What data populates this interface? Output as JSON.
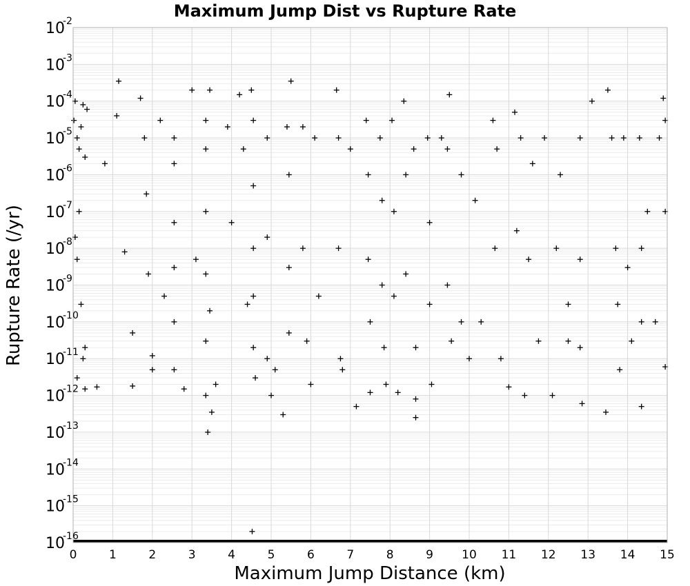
{
  "chart_data": {
    "type": "scatter",
    "title": "Maximum Jump Dist vs Rupture Rate",
    "xlabel": "Maximum Jump Distance (km)",
    "ylabel": "Rupture Rate (/yr)",
    "xlim": [
      0,
      15
    ],
    "ylim": [
      1e-16,
      0.01
    ],
    "yscale": "log",
    "grid": true,
    "marker": "+",
    "marker_color": "#000000",
    "x_ticks": [
      "0",
      "1",
      "2",
      "3",
      "4",
      "5",
      "6",
      "7",
      "8",
      "9",
      "10",
      "11",
      "12",
      "13",
      "14",
      "15"
    ],
    "y_ticks": [
      {
        "base": "10",
        "exp": "-16"
      },
      {
        "base": "10",
        "exp": "-15"
      },
      {
        "base": "10",
        "exp": "-14"
      },
      {
        "base": "10",
        "exp": "-13"
      },
      {
        "base": "10",
        "exp": "-12"
      },
      {
        "base": "10",
        "exp": "-11"
      },
      {
        "base": "10",
        "exp": "-10"
      },
      {
        "base": "10",
        "exp": "-9"
      },
      {
        "base": "10",
        "exp": "-8"
      },
      {
        "base": "10",
        "exp": "-7"
      },
      {
        "base": "10",
        "exp": "-6"
      },
      {
        "base": "10",
        "exp": "-5"
      },
      {
        "base": "10",
        "exp": "-4"
      },
      {
        "base": "10",
        "exp": "-3"
      },
      {
        "base": "10",
        "exp": "-2"
      }
    ],
    "points": [
      [
        0.02,
        3e-05
      ],
      [
        0.05,
        0.0001
      ],
      [
        0.1,
        1e-05
      ],
      [
        0.15,
        5e-06
      ],
      [
        0.2,
        2e-05
      ],
      [
        0.25,
        8e-05
      ],
      [
        0.3,
        3e-06
      ],
      [
        0.35,
        6e-05
      ],
      [
        0.05,
        2e-08
      ],
      [
        0.1,
        5e-09
      ],
      [
        0.15,
        1e-07
      ],
      [
        0.2,
        3e-10
      ],
      [
        0.25,
        1e-11
      ],
      [
        0.3,
        2e-11
      ],
      [
        0.1,
        3e-12
      ],
      [
        0.3,
        1.5e-12
      ],
      [
        0.6,
        1.7e-12
      ],
      [
        1.15,
        0.00035
      ],
      [
        1.1,
        4e-05
      ],
      [
        0.8,
        2e-06
      ],
      [
        1.3,
        8e-09
      ],
      [
        1.5,
        5e-11
      ],
      [
        1.5,
        1.8e-12
      ],
      [
        1.7,
        0.00012
      ],
      [
        1.8,
        1e-05
      ],
      [
        1.85,
        3e-07
      ],
      [
        1.9,
        2e-09
      ],
      [
        2.0,
        1.2e-11
      ],
      [
        2.0,
        5e-12
      ],
      [
        2.2,
        3e-05
      ],
      [
        2.3,
        5e-10
      ],
      [
        2.55,
        1e-05
      ],
      [
        2.55,
        2e-06
      ],
      [
        2.55,
        5e-08
      ],
      [
        2.55,
        3e-09
      ],
      [
        2.55,
        1e-10
      ],
      [
        2.55,
        5e-12
      ],
      [
        2.8,
        1.5e-12
      ],
      [
        3.0,
        0.0002
      ],
      [
        3.1,
        5e-09
      ],
      [
        3.35,
        3e-05
      ],
      [
        3.35,
        5e-06
      ],
      [
        3.35,
        1e-07
      ],
      [
        3.35,
        2e-09
      ],
      [
        3.35,
        3e-11
      ],
      [
        3.35,
        1e-12
      ],
      [
        3.4,
        1e-13
      ],
      [
        3.45,
        0.0002
      ],
      [
        3.45,
        2e-10
      ],
      [
        3.5,
        3.5e-13
      ],
      [
        3.6,
        2e-12
      ],
      [
        3.9,
        2e-05
      ],
      [
        4.0,
        5e-08
      ],
      [
        4.2,
        0.00015
      ],
      [
        4.3,
        5e-06
      ],
      [
        4.4,
        3e-10
      ],
      [
        4.5,
        0.0002
      ],
      [
        4.52,
        2e-16
      ],
      [
        4.55,
        3e-05
      ],
      [
        4.55,
        5e-07
      ],
      [
        4.55,
        1e-08
      ],
      [
        4.55,
        5e-10
      ],
      [
        4.55,
        2e-11
      ],
      [
        4.6,
        3e-12
      ],
      [
        4.9,
        1e-05
      ],
      [
        4.9,
        2e-08
      ],
      [
        4.9,
        1e-11
      ],
      [
        5.0,
        1e-12
      ],
      [
        5.1,
        5e-12
      ],
      [
        5.3,
        3e-13
      ],
      [
        5.4,
        2e-05
      ],
      [
        5.45,
        1e-06
      ],
      [
        5.45,
        3e-09
      ],
      [
        5.45,
        5e-11
      ],
      [
        5.5,
        0.00035
      ],
      [
        5.8,
        2e-05
      ],
      [
        5.8,
        1e-08
      ],
      [
        5.9,
        3e-11
      ],
      [
        6.0,
        2e-12
      ],
      [
        6.1,
        1e-05
      ],
      [
        6.2,
        5e-10
      ],
      [
        6.65,
        0.0002
      ],
      [
        6.7,
        1e-05
      ],
      [
        6.7,
        1e-08
      ],
      [
        6.75,
        1e-11
      ],
      [
        6.8,
        5e-12
      ],
      [
        7.0,
        5e-06
      ],
      [
        7.15,
        5e-13
      ],
      [
        7.4,
        3e-05
      ],
      [
        7.45,
        1e-06
      ],
      [
        7.45,
        5e-09
      ],
      [
        7.5,
        1e-10
      ],
      [
        7.5,
        1.2e-12
      ],
      [
        7.75,
        1e-05
      ],
      [
        7.8,
        2e-07
      ],
      [
        7.8,
        1e-09
      ],
      [
        7.85,
        2e-11
      ],
      [
        7.9,
        2e-12
      ],
      [
        8.05,
        3e-05
      ],
      [
        8.1,
        1e-07
      ],
      [
        8.1,
        5e-10
      ],
      [
        8.2,
        1.2e-12
      ],
      [
        8.35,
        0.0001
      ],
      [
        8.4,
        1e-06
      ],
      [
        8.4,
        2e-09
      ],
      [
        8.6,
        5e-06
      ],
      [
        8.65,
        2e-11
      ],
      [
        8.65,
        2.5e-13
      ],
      [
        8.65,
        8e-13
      ],
      [
        8.95,
        1e-05
      ],
      [
        9.0,
        5e-08
      ],
      [
        9.0,
        3e-10
      ],
      [
        9.05,
        2e-12
      ],
      [
        9.3,
        1e-05
      ],
      [
        9.45,
        5e-06
      ],
      [
        9.45,
        1e-09
      ],
      [
        9.5,
        0.00015
      ],
      [
        9.55,
        3e-11
      ],
      [
        9.8,
        1e-06
      ],
      [
        9.8,
        1e-10
      ],
      [
        10.0,
        1e-11
      ],
      [
        10.15,
        2e-07
      ],
      [
        10.3,
        1e-10
      ],
      [
        10.6,
        3e-05
      ],
      [
        10.65,
        1e-08
      ],
      [
        10.7,
        5e-06
      ],
      [
        10.8,
        1e-11
      ],
      [
        11.0,
        1.7e-12
      ],
      [
        11.15,
        5e-05
      ],
      [
        11.2,
        3e-08
      ],
      [
        11.3,
        1e-05
      ],
      [
        11.4,
        1e-12
      ],
      [
        11.5,
        5e-09
      ],
      [
        11.6,
        2e-06
      ],
      [
        11.75,
        3e-11
      ],
      [
        11.9,
        1e-05
      ],
      [
        12.1,
        1e-12
      ],
      [
        12.2,
        1e-08
      ],
      [
        12.3,
        1e-06
      ],
      [
        12.5,
        3e-10
      ],
      [
        12.5,
        3e-11
      ],
      [
        12.8,
        1e-05
      ],
      [
        12.8,
        5e-09
      ],
      [
        12.8,
        2e-11
      ],
      [
        12.85,
        6e-13
      ],
      [
        13.1,
        0.0001
      ],
      [
        13.45,
        3.5e-13
      ],
      [
        13.5,
        0.0002
      ],
      [
        13.6,
        1e-05
      ],
      [
        13.7,
        1e-08
      ],
      [
        13.75,
        3e-10
      ],
      [
        13.8,
        5e-12
      ],
      [
        13.9,
        1e-05
      ],
      [
        14.0,
        3e-09
      ],
      [
        14.1,
        3e-11
      ],
      [
        14.3,
        1e-05
      ],
      [
        14.35,
        1e-08
      ],
      [
        14.35,
        1e-10
      ],
      [
        14.35,
        5e-13
      ],
      [
        14.5,
        1e-07
      ],
      [
        14.7,
        1e-10
      ],
      [
        14.8,
        1e-05
      ],
      [
        14.9,
        0.00012
      ],
      [
        14.95,
        3e-05
      ],
      [
        14.95,
        1e-07
      ],
      [
        14.95,
        6e-12
      ]
    ],
    "baseline_band": {
      "y": 1e-16,
      "x_range": [
        0,
        15
      ],
      "note": "dense row of markers at the minimum rate"
    }
  }
}
